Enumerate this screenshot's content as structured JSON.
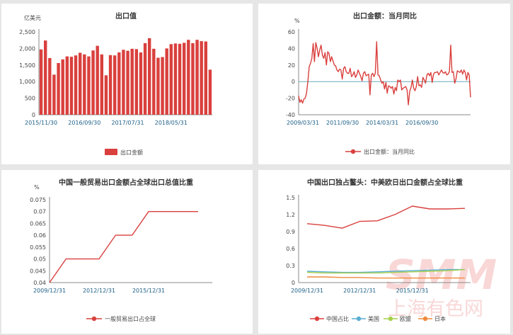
{
  "chart_data": [
    {
      "type": "bar",
      "title": "出口值",
      "ylabel": "亿美元",
      "ylim": [
        0,
        2500
      ],
      "yticks": [
        "0",
        "500",
        "1,000",
        "1,500",
        "2,000",
        "2,500"
      ],
      "xtick_labels": [
        "2015/11/30",
        "2016/09/30",
        "2017/07/31",
        "2018/05/31"
      ],
      "series": [
        {
          "name": "出口金额",
          "color": "#d9403d",
          "values": [
            1970,
            2240,
            1710,
            1210,
            1560,
            1670,
            1760,
            1750,
            1790,
            1870,
            1820,
            1760,
            1940,
            2080,
            1820,
            1190,
            1800,
            1790,
            1880,
            1960,
            1930,
            1990,
            1980,
            1880,
            2160,
            2310,
            1990,
            1720,
            1740,
            2000,
            2130,
            2150,
            2140,
            2170,
            2260,
            2160,
            2260,
            2220,
            2210,
            1360
          ]
        }
      ]
    },
    {
      "type": "line",
      "title": "出口金额：当月同比",
      "ylabel": "%",
      "ylim": [
        -40,
        60
      ],
      "yticks": [
        "-40",
        "-20",
        "0",
        "20",
        "40",
        "60"
      ],
      "xtick_labels": [
        "2009/03/31",
        "2011/09/30",
        "2014/03/31",
        "2016/09/30"
      ],
      "series": [
        {
          "name": "出口金额：当月同比",
          "color": "#d9403d",
          "values": [
            -17,
            -25,
            -22,
            -26,
            -21,
            -20,
            -14,
            0,
            18,
            22,
            28,
            46,
            24,
            47,
            40,
            30,
            38,
            44,
            32,
            28,
            35,
            20,
            36,
            34,
            24,
            30,
            25,
            20,
            19,
            14,
            12,
            15,
            14,
            3,
            16,
            18,
            12,
            10,
            10,
            16,
            6,
            8,
            12,
            5,
            8,
            14,
            10,
            6,
            1,
            10,
            12,
            7,
            8,
            9,
            -16,
            8,
            10,
            6,
            10,
            48,
            8,
            7,
            2,
            -2,
            0,
            -9,
            -1,
            -14,
            -5,
            -6,
            -8,
            -6,
            -15,
            -7,
            -11,
            2,
            0,
            2,
            -10,
            -8,
            -7,
            -6,
            -10,
            -28,
            -12,
            -7,
            2,
            -8,
            -11,
            -6,
            6,
            -5,
            -4,
            -7,
            5,
            2,
            -2,
            8,
            10,
            7,
            11,
            -1,
            9,
            11,
            11,
            12,
            8,
            11,
            14,
            11,
            10,
            12,
            8,
            9,
            12,
            44,
            11,
            12,
            -2,
            3,
            13,
            12,
            11,
            14,
            9,
            14,
            11,
            2,
            11,
            8,
            -19
          ]
        }
      ]
    },
    {
      "type": "line",
      "title": "中国一般贸易出口金额占全球出口总值比重",
      "ylabel": "%",
      "ylim": [
        0.04,
        0.075
      ],
      "yticks": [
        "0.04",
        "0.045",
        "0.05",
        "0.055",
        "0.06",
        "0.065",
        "0.07",
        "0.075"
      ],
      "x": [
        "2009",
        "2010",
        "2011",
        "2012",
        "2013",
        "2014",
        "2015",
        "2016",
        "2017",
        "2018"
      ],
      "xtick_labels": [
        "2009/12/31",
        "2012/12/31",
        "2015/12/31"
      ],
      "series": [
        {
          "name": "一般贸易出口占全球",
          "color": "#d9403d",
          "values": [
            0.04,
            0.05,
            0.05,
            0.05,
            0.06,
            0.06,
            0.07,
            0.07,
            0.07,
            0.07
          ]
        }
      ]
    },
    {
      "type": "line",
      "title": "中国出口独占鳌头：中美欧日出口金额占全球比重",
      "ylim": [
        0,
        1.5
      ],
      "yticks": [
        "0",
        "0.3",
        "0.6",
        "0.9",
        "1.2",
        "1.5"
      ],
      "x": [
        "2009",
        "2010",
        "2011",
        "2012",
        "2013",
        "2014",
        "2015",
        "2016",
        "2017",
        "2018"
      ],
      "xtick_labels": [
        "2009/12/31",
        "2012/12/31",
        "2015/12/31"
      ],
      "series": [
        {
          "name": "中国占比",
          "color": "#d9403d",
          "values": [
            1.04,
            1.01,
            0.96,
            1.08,
            1.09,
            1.2,
            1.35,
            1.3,
            1.3,
            1.31
          ]
        },
        {
          "name": "美国",
          "color": "#5aaed2",
          "values": [
            0.2,
            0.19,
            0.18,
            0.18,
            0.19,
            0.2,
            0.21,
            0.22,
            0.23,
            0.23
          ]
        },
        {
          "name": "欧盟",
          "color": "#a6cf4a",
          "values": [
            0.18,
            0.17,
            0.17,
            0.17,
            0.17,
            0.18,
            0.19,
            0.2,
            0.21,
            0.23
          ]
        },
        {
          "name": "日本",
          "color": "#f08a3c",
          "values": [
            0.1,
            0.1,
            0.09,
            0.09,
            0.08,
            0.08,
            0.08,
            0.08,
            0.08,
            0.08
          ]
        }
      ]
    }
  ],
  "watermark": {
    "logo": "SMM",
    "text": "上海有色网",
    "color": "#f2a7a7"
  }
}
